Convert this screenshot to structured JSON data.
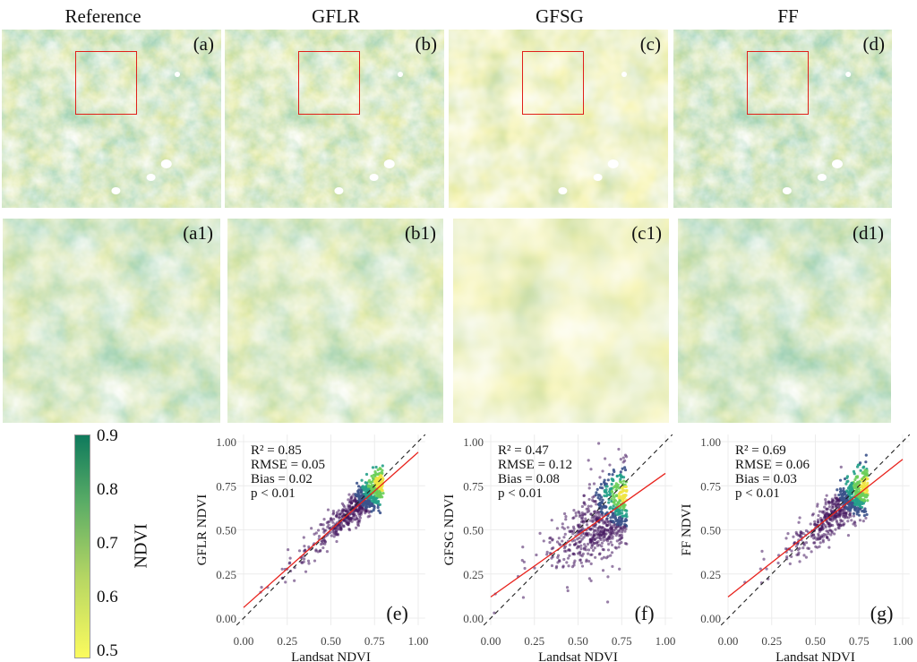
{
  "columns": [
    {
      "title": "Reference",
      "top_label": "(a)",
      "bottom_label": "(a1)"
    },
    {
      "title": "GFLR",
      "top_label": "(b)",
      "bottom_label": "(b1)"
    },
    {
      "title": "GFSG",
      "top_label": "(c)",
      "bottom_label": "(c1)"
    },
    {
      "title": "FF",
      "top_label": "(d)",
      "bottom_label": "(d1)"
    }
  ],
  "colorbar": {
    "label": "NDVI",
    "ticks": [
      "0.9",
      "0.8",
      "0.7",
      "0.6",
      "0.5"
    ],
    "min": 0.5,
    "max": 0.9,
    "low_color": "#fbfb5e",
    "high_color": "#0e7a5c"
  },
  "chart_data": [
    {
      "type": "scatter",
      "panel_label": "(e)",
      "xlabel": "Landsat NDVI",
      "ylabel": "GFLR NDVI",
      "xlim": [
        0,
        1
      ],
      "ylim": [
        0,
        1
      ],
      "ticks": [
        "0.00",
        "0.25",
        "0.50",
        "0.75",
        "1.00"
      ],
      "stats": [
        "R² = 0.85",
        "RMSE = 0.05",
        "Bias = 0.02",
        "p < 0.01"
      ],
      "fit": {
        "intercept": 0.06,
        "slope": 0.88
      },
      "spread": 0.05,
      "center": [
        0.8,
        0.77
      ],
      "grid": true
    },
    {
      "type": "scatter",
      "panel_label": "(f)",
      "xlabel": "Landsat NDVI",
      "ylabel": "GFSG NDVI",
      "xlim": [
        0,
        1
      ],
      "ylim": [
        0,
        1
      ],
      "ticks": [
        "0.00",
        "0.25",
        "0.50",
        "0.75",
        "1.00"
      ],
      "stats": [
        "R² = 0.47",
        "RMSE = 0.12",
        "Bias = 0.08",
        "p < 0.01"
      ],
      "fit": {
        "intercept": 0.12,
        "slope": 0.7
      },
      "spread": 0.12,
      "center": [
        0.78,
        0.7
      ],
      "grid": true
    },
    {
      "type": "scatter",
      "panel_label": "(g)",
      "xlabel": "Landsat NDVI",
      "ylabel": "FF NDVI",
      "xlim": [
        0,
        1
      ],
      "ylim": [
        0,
        1
      ],
      "ticks": [
        "0.00",
        "0.25",
        "0.50",
        "0.75",
        "1.00"
      ],
      "stats": [
        "R² = 0.69",
        "RMSE = 0.06",
        "Bias = 0.03",
        "p < 0.01"
      ],
      "fit": {
        "intercept": 0.12,
        "slope": 0.78
      },
      "spread": 0.07,
      "center": [
        0.8,
        0.75
      ],
      "grid": true
    }
  ]
}
